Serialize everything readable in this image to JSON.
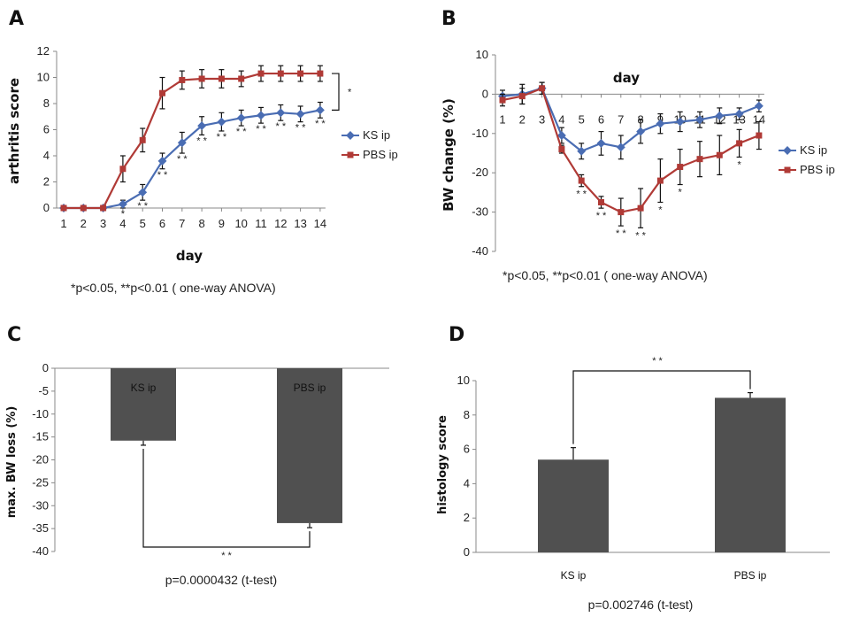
{
  "colors": {
    "ks": "#4a6db3",
    "pbs": "#b03a36",
    "bar": "#505050",
    "axis": "#888888"
  },
  "chart_data": [
    {
      "panel": "A",
      "type": "line",
      "xlabel": "day",
      "ylabel": "arthritis score",
      "ylim": [
        0,
        12
      ],
      "yticks": [
        0,
        2,
        4,
        6,
        8,
        10,
        12
      ],
      "x": [
        1,
        2,
        3,
        4,
        5,
        6,
        7,
        8,
        9,
        10,
        11,
        12,
        13,
        14
      ],
      "series": [
        {
          "name": "KS ip",
          "values": [
            0,
            0,
            0,
            0.3,
            1.2,
            3.6,
            5.0,
            6.3,
            6.6,
            6.9,
            7.1,
            7.3,
            7.2,
            7.5
          ],
          "err": [
            0,
            0,
            0,
            0.3,
            0.6,
            0.6,
            0.8,
            0.7,
            0.7,
            0.6,
            0.6,
            0.6,
            0.6,
            0.6
          ]
        },
        {
          "name": "PBS ip",
          "values": [
            0,
            0,
            0,
            3.0,
            5.2,
            8.8,
            9.8,
            9.9,
            9.9,
            9.9,
            10.3,
            10.3,
            10.3,
            10.3
          ],
          "err": [
            0,
            0,
            0,
            1.0,
            0.9,
            1.2,
            0.7,
            0.7,
            0.7,
            0.6,
            0.6,
            0.6,
            0.6,
            0.6
          ]
        }
      ],
      "significance": [
        {
          "x": 4,
          "text": "*"
        },
        {
          "x": 5,
          "text": "* *"
        },
        {
          "x": 6,
          "text": "* *"
        },
        {
          "x": 7,
          "text": "* *"
        },
        {
          "x": 8,
          "text": "* *"
        },
        {
          "x": 9,
          "text": "* *"
        },
        {
          "x": 10,
          "text": "* *"
        },
        {
          "x": 11,
          "text": "* *"
        },
        {
          "x": 12,
          "text": "* *"
        },
        {
          "x": 13,
          "text": "* *"
        },
        {
          "x": 14,
          "text": "* *"
        }
      ],
      "bracket_text": "*",
      "note": "*p<0.05,  **p<0.01 ( one-way ANOVA)"
    },
    {
      "panel": "B",
      "type": "line",
      "xlabel": "day",
      "ylabel": "BW change (%)",
      "ylim": [
        -40,
        10
      ],
      "yticks": [
        10,
        0,
        -10,
        -20,
        -30,
        -40
      ],
      "x": [
        1,
        2,
        3,
        4,
        5,
        6,
        7,
        8,
        9,
        10,
        11,
        12,
        13,
        14
      ],
      "series": [
        {
          "name": "KS ip",
          "values": [
            -0.5,
            0,
            1.5,
            -10.5,
            -14.5,
            -12.5,
            -13.5,
            -9.5,
            -7.5,
            -7.0,
            -6.5,
            -5.5,
            -5.0,
            -3.0
          ],
          "err": [
            1.5,
            2.5,
            1.5,
            2.0,
            2.0,
            3.0,
            3.0,
            3.0,
            2.5,
            2.5,
            2.0,
            2.0,
            1.5,
            1.5
          ]
        },
        {
          "name": "PBS ip",
          "values": [
            -1.5,
            -0.5,
            1.5,
            -14.0,
            -22.0,
            -27.5,
            -30.0,
            -29.0,
            -22.0,
            -18.5,
            -16.5,
            -15.5,
            -12.5,
            -10.5
          ],
          "err": [
            1.5,
            2.0,
            1.5,
            1.0,
            1.5,
            1.5,
            3.5,
            5.0,
            5.5,
            4.5,
            4.5,
            5.0,
            3.5,
            3.5
          ]
        }
      ],
      "significance": [
        {
          "x": 5,
          "text": "* *"
        },
        {
          "x": 6,
          "text": "* *"
        },
        {
          "x": 7,
          "text": "* *"
        },
        {
          "x": 8,
          "text": "* *"
        },
        {
          "x": 9,
          "text": "*"
        },
        {
          "x": 10,
          "text": "*"
        },
        {
          "x": 13,
          "text": "*"
        }
      ],
      "note": "*p<0.05,  **p<0.01 ( one-way ANOVA)"
    },
    {
      "panel": "C",
      "type": "bar",
      "ylabel": "max. BW loss (%)",
      "ylim": [
        -40,
        0
      ],
      "yticks": [
        0,
        -5,
        -10,
        -15,
        -20,
        -25,
        -30,
        -35,
        -40
      ],
      "categories": [
        "KS ip",
        "PBS ip"
      ],
      "values": [
        -15.8,
        -33.8
      ],
      "err": [
        1.0,
        1.0
      ],
      "bracket_text": "* *",
      "note": "p=0.0000432 (t-test)"
    },
    {
      "panel": "D",
      "type": "bar",
      "ylabel": "histology score",
      "ylim": [
        0,
        10
      ],
      "yticks": [
        0,
        2,
        4,
        6,
        8,
        10
      ],
      "categories": [
        "KS ip",
        "PBS ip"
      ],
      "values": [
        5.4,
        9.0
      ],
      "err": [
        0.7,
        0.3
      ],
      "bracket_text": "* *",
      "note": "p=0.002746 (t-test)"
    }
  ]
}
